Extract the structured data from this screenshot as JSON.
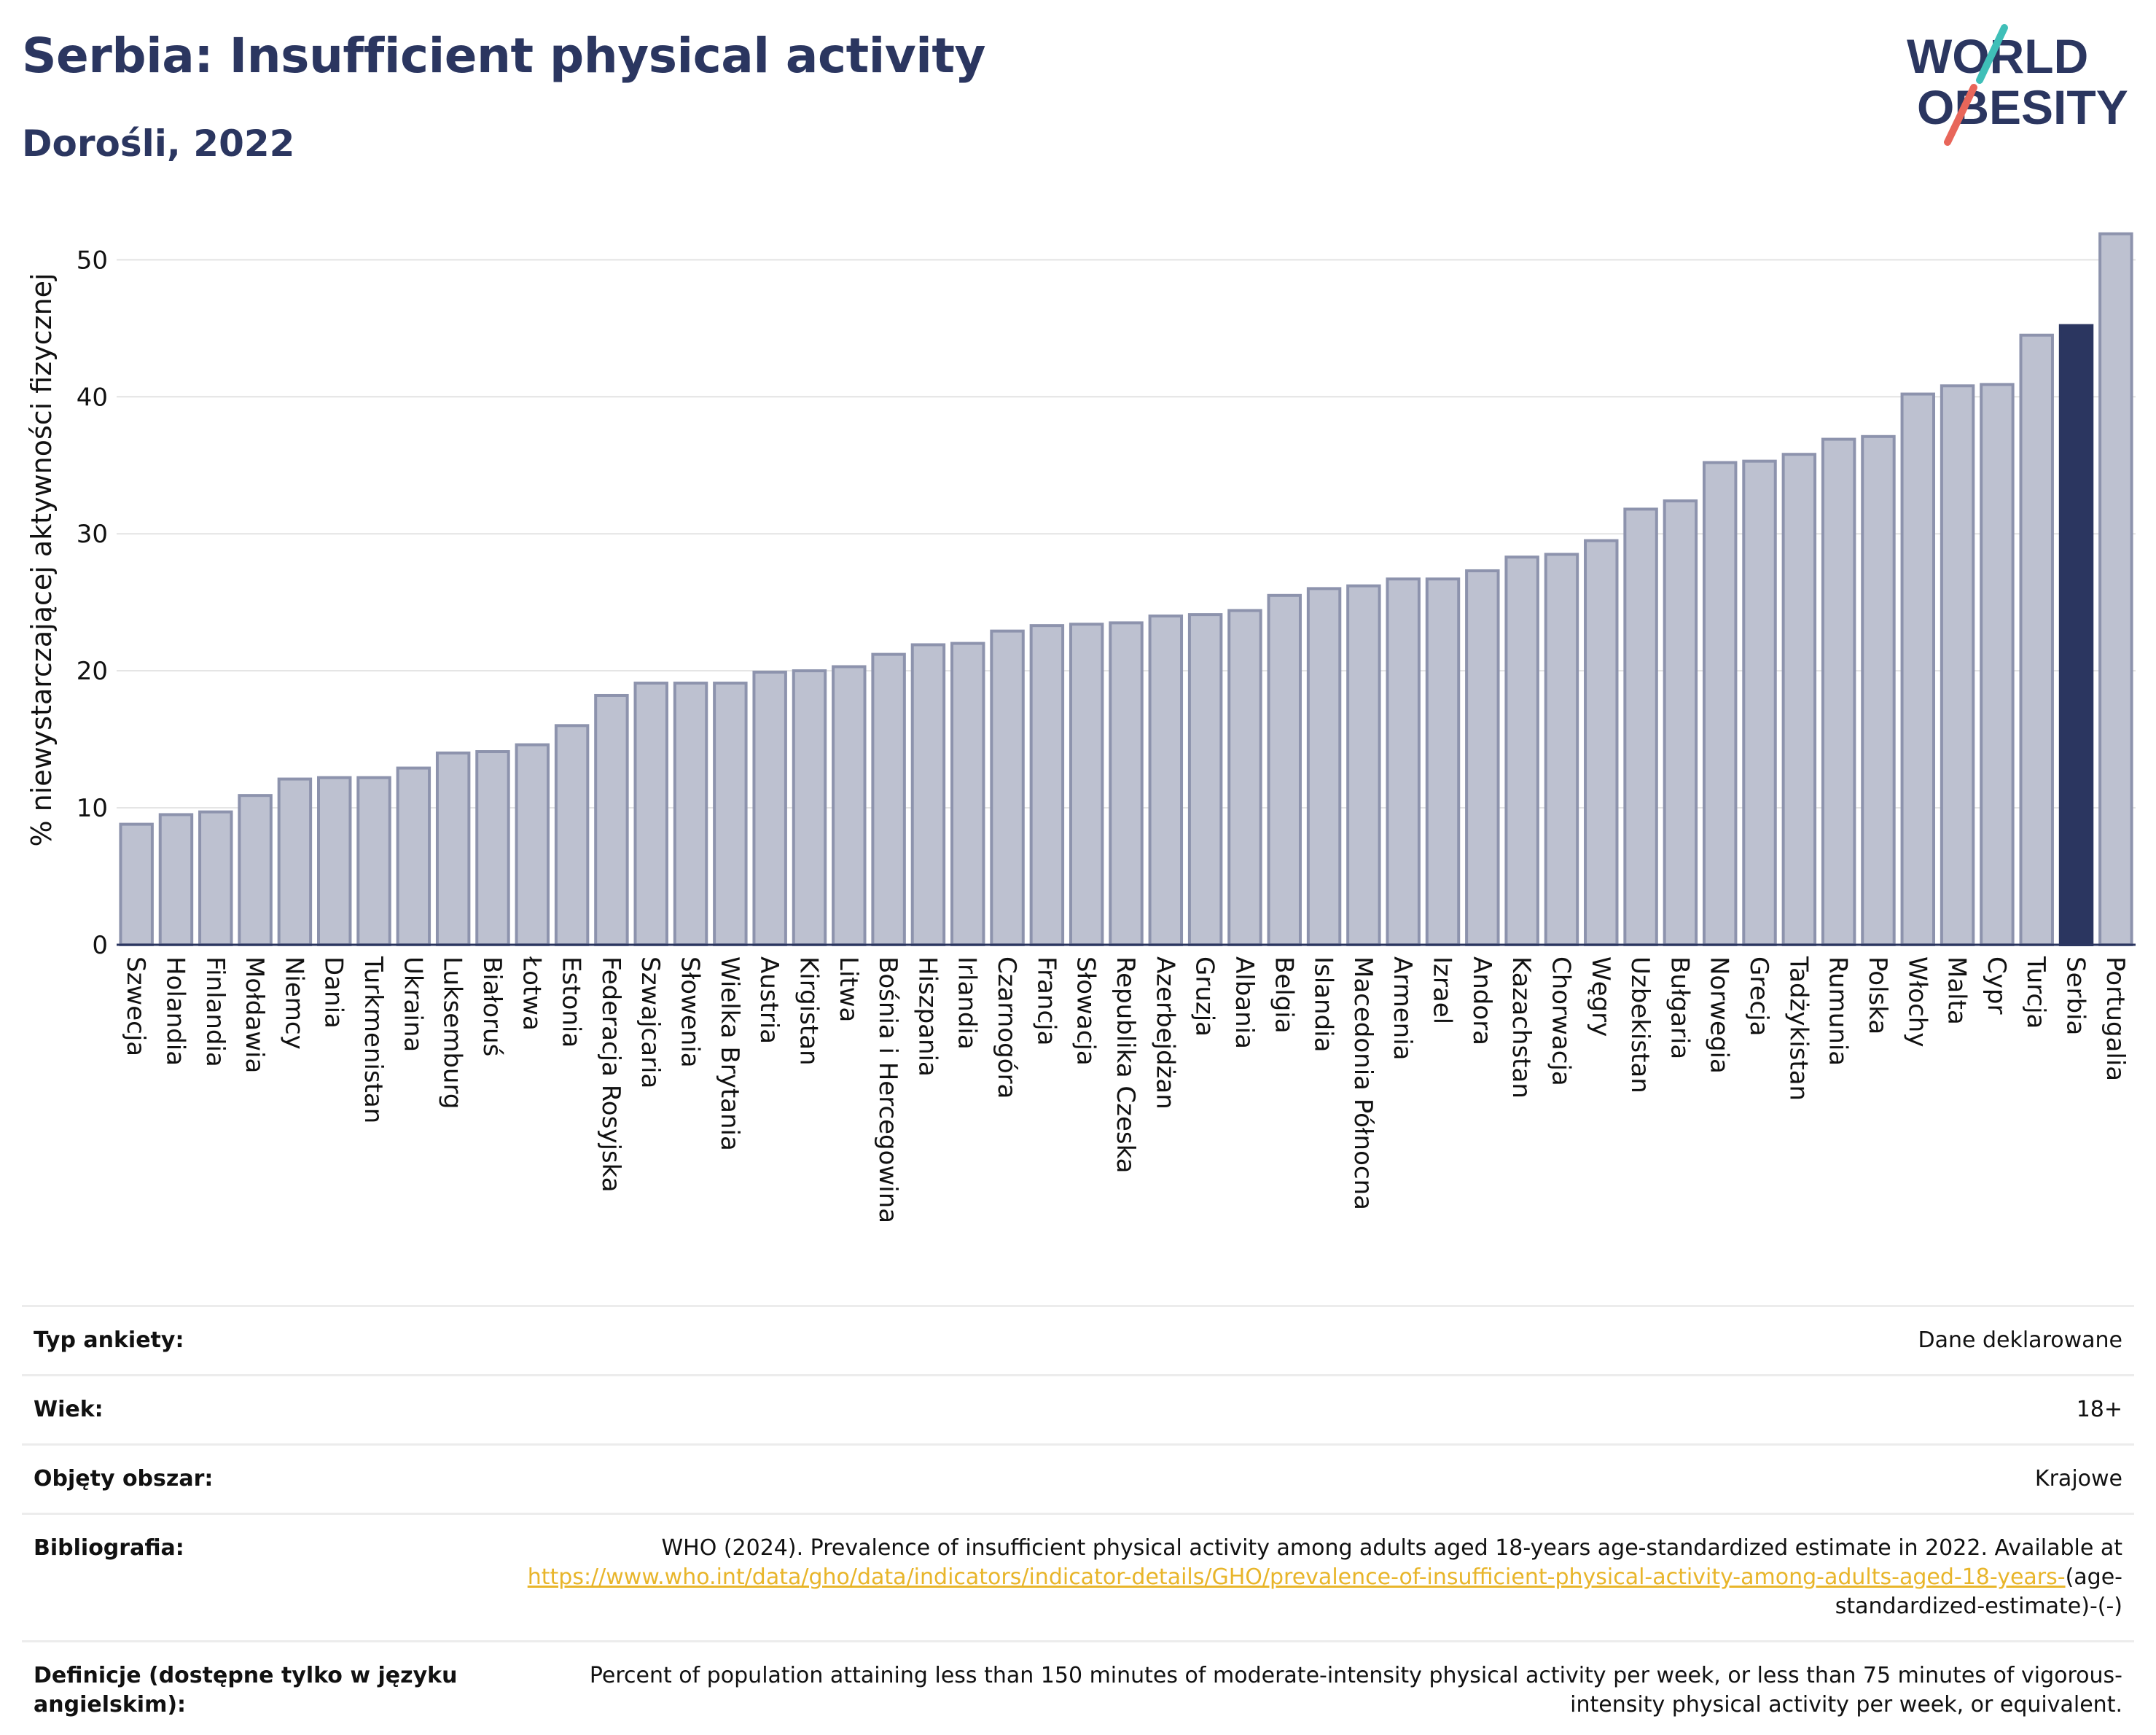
{
  "header": {
    "title": "Serbia: Insufficient physical activity",
    "subtitle": "Dorośli, 2022"
  },
  "logo": {
    "line1": "WORLD",
    "line2": "OBESITY",
    "colors": {
      "text": "#2b3660",
      "slash_teal": "#3fbfb8",
      "slash_red": "#e8665a"
    }
  },
  "chart_data": {
    "type": "bar",
    "ylabel": "% niewystarczającej aktywności fizycznej",
    "ylim": [
      0,
      53
    ],
    "yticks": [
      0,
      10,
      20,
      30,
      40,
      50
    ],
    "grid": true,
    "highlight": "Serbia",
    "colors": {
      "bar": "#bdc1d0",
      "bar_edge": "#8d93ad",
      "highlight": "#2b3660"
    },
    "categories": [
      "Szwecja",
      "Holandia",
      "Finlandia",
      "Mołdawia",
      "Niemcy",
      "Dania",
      "Turkmenistan",
      "Ukraina",
      "Luksemburg",
      "Białoruś",
      "Łotwa",
      "Estonia",
      "Federacja Rosyjska",
      "Szwajcaria",
      "Słowenia",
      "Wielka Brytania",
      "Austria",
      "Kirgistan",
      "Litwa",
      "Bośnia i Hercegowina",
      "Hiszpania",
      "Irlandia",
      "Czarnogóra",
      "Francja",
      "Słowacja",
      "Republika Czeska",
      "Azerbejdżan",
      "Gruzja",
      "Albania",
      "Belgia",
      "Islandia",
      "Macedonia Północna",
      "Armenia",
      "Izrael",
      "Andora",
      "Kazachstan",
      "Chorwacja",
      "Węgry",
      "Uzbekistan",
      "Bułgaria",
      "Norwegia",
      "Grecja",
      "Tadżykistan",
      "Rumunia",
      "Polska",
      "Włochy",
      "Malta",
      "Cypr",
      "Turcja",
      "Serbia",
      "Portugalia"
    ],
    "values": [
      8.8,
      9.5,
      9.7,
      10.9,
      12.1,
      12.2,
      12.2,
      12.9,
      14.0,
      14.1,
      14.6,
      16.0,
      18.2,
      19.1,
      19.1,
      19.1,
      19.9,
      20.0,
      20.3,
      21.2,
      21.9,
      22.0,
      22.9,
      23.3,
      23.4,
      23.5,
      24.0,
      24.1,
      24.4,
      25.5,
      26.0,
      26.2,
      26.7,
      26.7,
      27.3,
      28.3,
      28.5,
      29.5,
      31.8,
      32.4,
      35.2,
      35.3,
      35.8,
      36.9,
      37.1,
      40.2,
      40.8,
      40.9,
      44.5,
      45.2,
      51.9
    ]
  },
  "info": {
    "rows": [
      {
        "key": "Typ ankiety:",
        "value": "Dane deklarowane"
      },
      {
        "key": "Wiek:",
        "value": "18+"
      },
      {
        "key": "Objęty obszar:",
        "value": "Krajowe"
      }
    ],
    "bibliography": {
      "key": "Bibliografia:",
      "text": "WHO (2024). Prevalence of insufficient physical activity among adults aged 18-years age-standardized estimate in 2022. Available at",
      "link": "https://www.who.int/data/gho/data/indicators/indicator-details/GHO/prevalence-of-insufficient-physical-activity-among-adults-aged-18-years-",
      "suffix": "(age-standardized-estimate)-(-)"
    },
    "definition": {
      "key": "Definicje (dostępne tylko w języku angielskim):",
      "value": "Percent of population attaining less than 150 minutes of moderate-intensity physical activity per week, or less than 75 minutes of vigorous-intensity physical activity per week, or equivalent."
    }
  }
}
